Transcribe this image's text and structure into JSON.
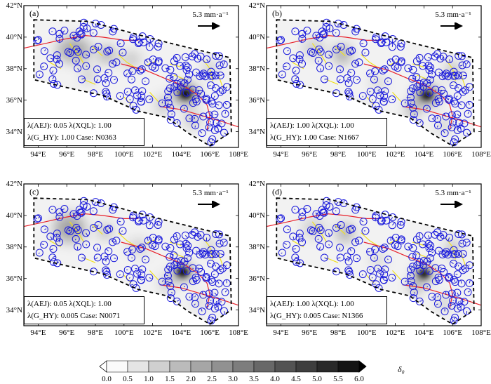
{
  "figure": {
    "lon_ticks": [
      "94°E",
      "96°E",
      "98°E",
      "100°E",
      "102°E",
      "104°E",
      "106°E",
      "108°E"
    ],
    "lat_ticks": [
      "34°N",
      "36°N",
      "38°N",
      "40°N",
      "42°N"
    ],
    "lon_range": [
      93,
      108
    ],
    "lat_range": [
      33,
      42
    ],
    "scale_label": "5.3 mm·a⁻¹",
    "colors": {
      "fault_major": "#e8202a",
      "fault_minor": "#f0e020",
      "station": "#1a1adc"
    }
  },
  "panels": [
    {
      "label": "(a)",
      "line1": "λ(AEJ): 0.05  λ(XQL): 1.00",
      "line2": "λ(G_HY): 1.00  Case: N0363",
      "variant": "a"
    },
    {
      "label": "(b)",
      "line1": "λ(AEJ): 1.00  λ(XQL): 1.00",
      "line2": "λ(G_HY): 1.00  Case: N1667",
      "variant": "b"
    },
    {
      "label": "(c)",
      "line1": "λ(AEJ): 0.05  λ(XQL): 1.00",
      "line2": "λ(G_HY): 0.005  Case: N0071",
      "variant": "c"
    },
    {
      "label": "(d)",
      "line1": "λ(AEJ): 1.00  λ(XQL): 1.00",
      "line2": "λ(G_HY): 0.005  Case: N1366",
      "variant": "d"
    }
  ],
  "colorbar": {
    "title": "δ₀",
    "ticks": [
      "0.0",
      "0.5",
      "1.0",
      "1.5",
      "2.0",
      "2.5",
      "3.0",
      "3.5",
      "4.0",
      "4.5",
      "5.0",
      "5.5",
      "6.0"
    ]
  }
}
